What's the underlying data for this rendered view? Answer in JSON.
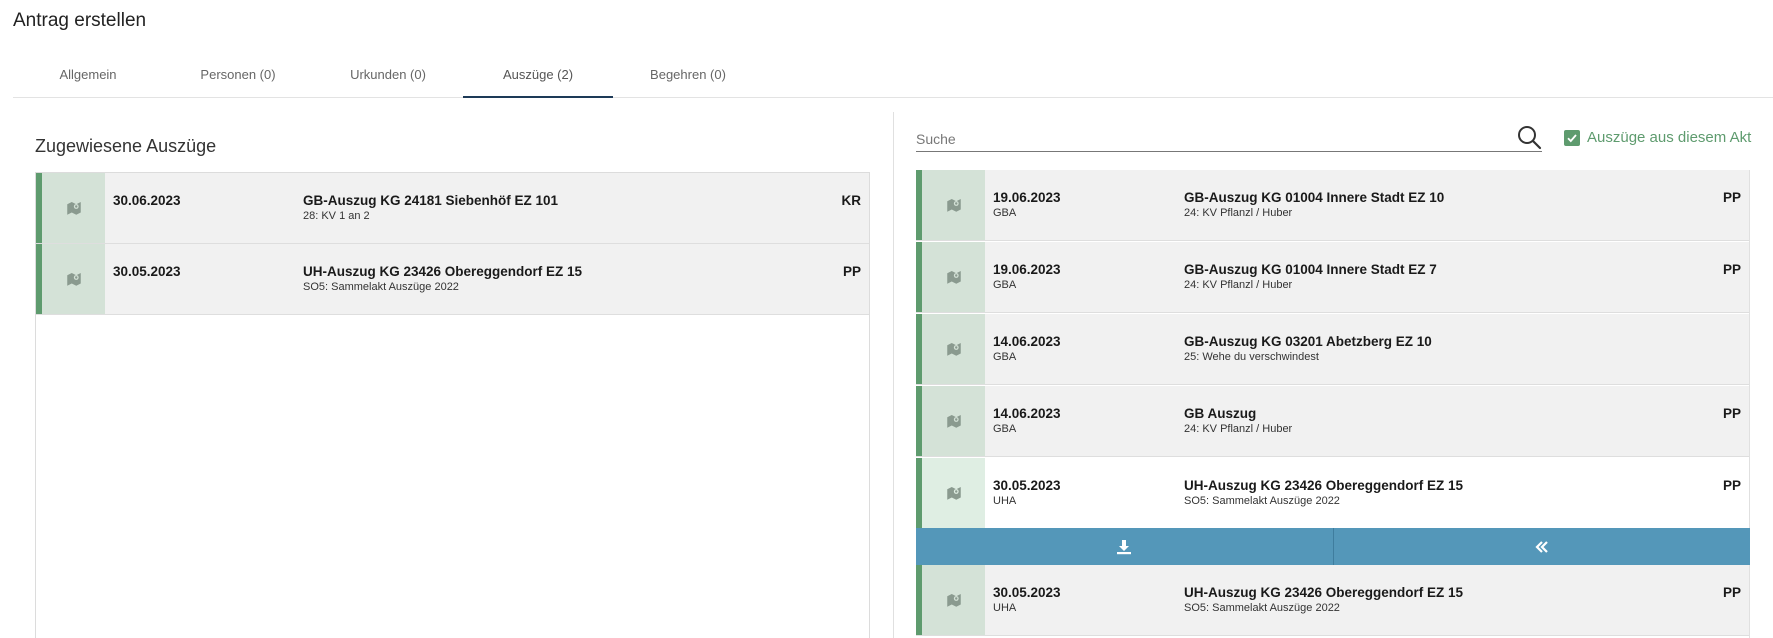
{
  "page": {
    "title": "Antrag erstellen"
  },
  "tabs": [
    {
      "label": "Allgemein"
    },
    {
      "label": "Personen (0)"
    },
    {
      "label": "Urkunden (0)"
    },
    {
      "label": "Auszüge (2)"
    },
    {
      "label": "Begehren (0)"
    }
  ],
  "active_tab": "Auszüge (2)",
  "assigned": {
    "title": "Zugewiesene Auszüge",
    "rows": [
      {
        "date": "30.06.2023",
        "title": "GB-Auszug KG 24181 Siebenhöf EZ 101",
        "sub": "28: KV 1 an 2",
        "code": "KR"
      },
      {
        "date": "30.05.2023",
        "title": "UH-Auszug KG 23426 Obereggendorf EZ 15",
        "sub": "SO5: Sammelakt Auszüge 2022",
        "code": "PP"
      }
    ]
  },
  "search": {
    "placeholder": "Suche",
    "value": ""
  },
  "filter": {
    "label": "Auszüge aus diesem Akt",
    "checked": true
  },
  "available": {
    "rows": [
      {
        "date": "19.06.2023",
        "type": "GBA",
        "title": "GB-Auszug KG 01004 Innere Stadt EZ 10",
        "sub": "24: KV Pflanzl / Huber",
        "code": "PP"
      },
      {
        "date": "19.06.2023",
        "type": "GBA",
        "title": "GB-Auszug KG 01004 Innere Stadt EZ 7",
        "sub": "24: KV Pflanzl / Huber",
        "code": "PP"
      },
      {
        "date": "14.06.2023",
        "type": "GBA",
        "title": "GB-Auszug KG 03201 Abetzberg EZ 10",
        "sub": "25: Wehe du verschwindest",
        "code": ""
      },
      {
        "date": "14.06.2023",
        "type": "GBA",
        "title": "GB Auszug",
        "sub": "24: KV Pflanzl / Huber",
        "code": "PP"
      },
      {
        "date": "30.05.2023",
        "type": "UHA",
        "title": "UH-Auszug KG 23426 Obereggendorf EZ 15",
        "sub": "SO5: Sammelakt Auszüge 2022",
        "code": "PP"
      },
      {
        "date": "30.05.2023",
        "type": "UHA",
        "title": "UH-Auszug KG 23426 Obereggendorf EZ 15",
        "sub": "SO5: Sammelakt Auszüge 2022",
        "code": "PP"
      }
    ]
  },
  "actions": {
    "download_icon": "download-icon",
    "assign_icon": "double-chevron-left-icon"
  },
  "colors": {
    "accent_green": "#5e9b6e",
    "action_blue": "#5497b9",
    "tab_indicator": "#1d3a57"
  }
}
